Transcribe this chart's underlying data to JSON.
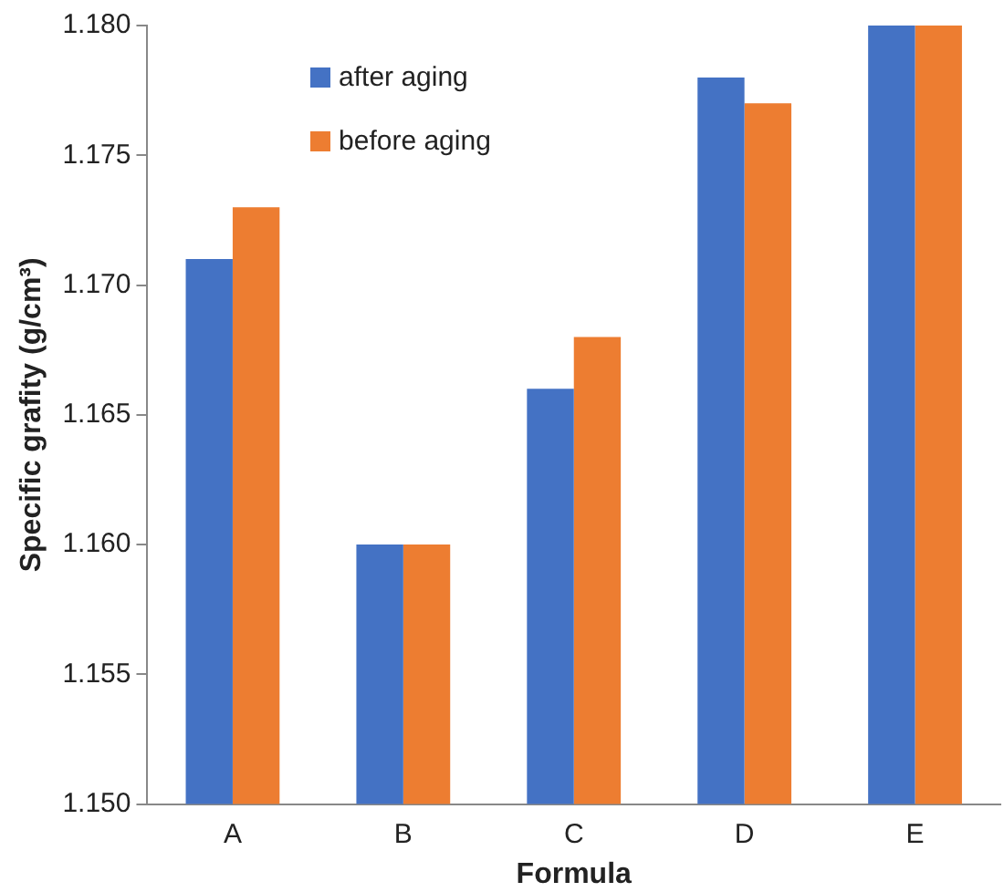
{
  "chart_data": {
    "type": "bar",
    "xlabel": "Formula",
    "ylabel": "Specific grafity (g/cm³)",
    "categories": [
      "A",
      "B",
      "C",
      "D",
      "E"
    ],
    "series": [
      {
        "name": "after aging",
        "color": "#4472c4",
        "values": [
          1.171,
          1.16,
          1.166,
          1.178,
          1.18
        ]
      },
      {
        "name": "before aging",
        "color": "#ed7d31",
        "values": [
          1.173,
          1.16,
          1.168,
          1.177,
          1.18
        ]
      }
    ],
    "ylim": [
      1.15,
      1.18
    ],
    "yticks": [
      {
        "value": 1.15,
        "label": "1.150"
      },
      {
        "value": 1.155,
        "label": "1.155"
      },
      {
        "value": 1.16,
        "label": "1.160"
      },
      {
        "value": 1.165,
        "label": "1.165"
      },
      {
        "value": 1.17,
        "label": "1.170"
      },
      {
        "value": 1.175,
        "label": "1.175"
      },
      {
        "value": 1.18,
        "label": "1.180"
      }
    ],
    "grid": false,
    "legend": "top left"
  }
}
